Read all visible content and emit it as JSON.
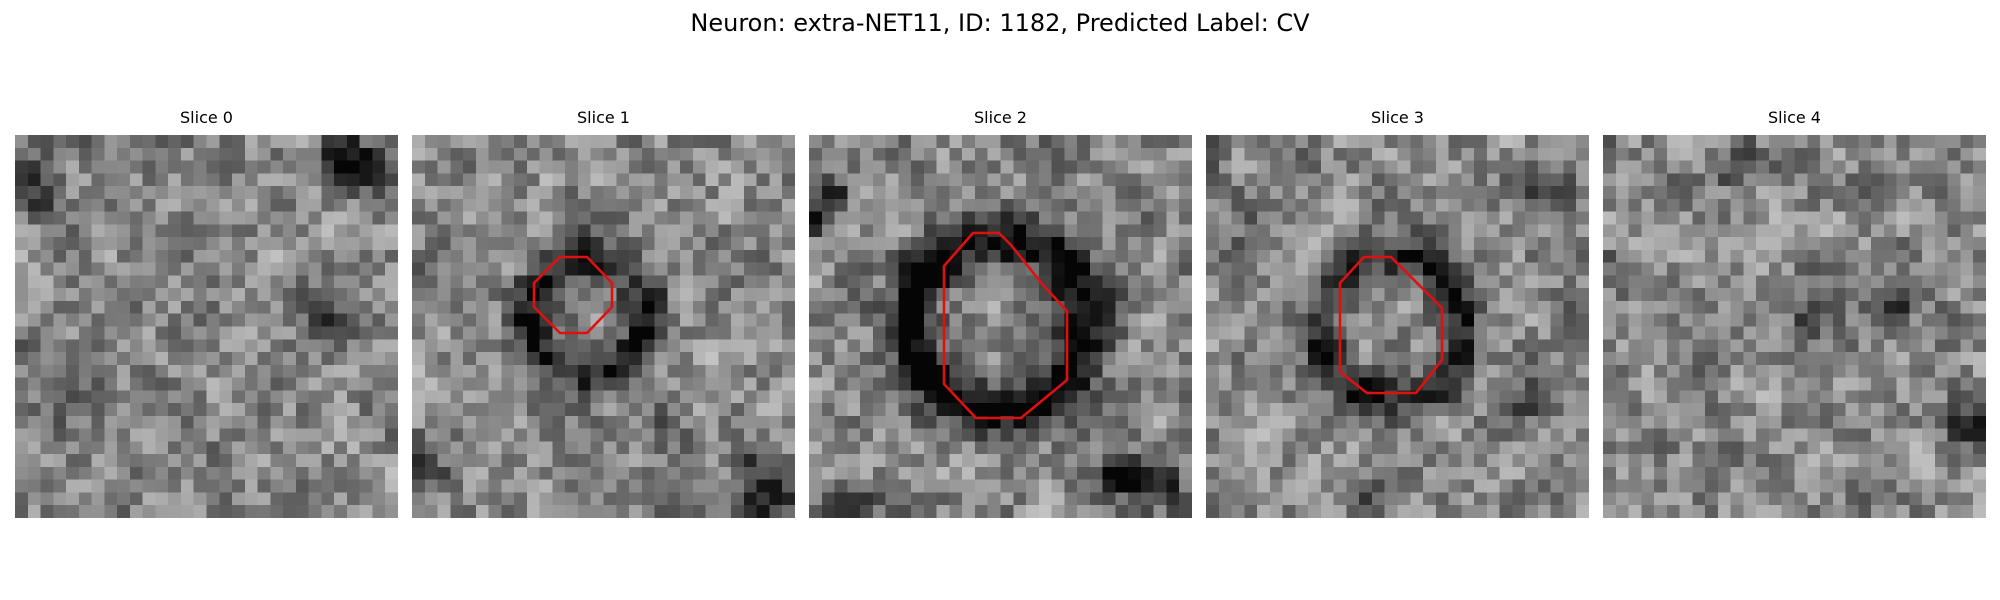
{
  "figure": {
    "title": "Neuron: extra-NET11, ID: 1182, Predicted Label: CV"
  },
  "colors": {
    "background": "#ffffff",
    "contour": "#e01010",
    "colormap": "gray"
  },
  "slices": [
    {
      "title": "Slice 0",
      "has_contour": false
    },
    {
      "title": "Slice 1",
      "has_contour": true
    },
    {
      "title": "Slice 2",
      "has_contour": true
    },
    {
      "title": "Slice 3",
      "has_contour": true
    },
    {
      "title": "Slice 4",
      "has_contour": false
    }
  ]
}
